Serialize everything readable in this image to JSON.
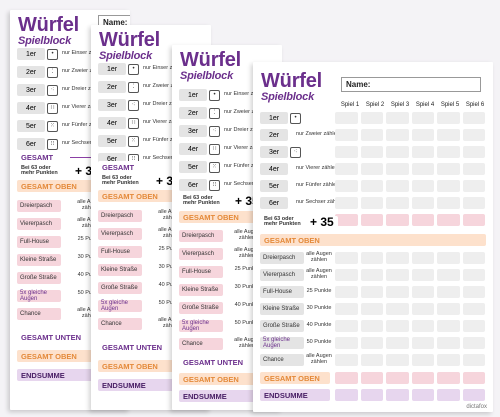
{
  "title": "Würfel",
  "subtitle": "Spielblock",
  "name_label": "Name:",
  "columns": [
    "Spiel 1",
    "Spiel 2",
    "Spiel 3",
    "Spiel 4",
    "Spiel 5",
    "Spiel 6"
  ],
  "upper": [
    {
      "label": "1er",
      "die": "•",
      "note": "nur Einser zählen"
    },
    {
      "label": "2er",
      "die": "⁚",
      "note": "nur Zweier zählen"
    },
    {
      "label": "3er",
      "die": "⁖",
      "note": "nur Dreier zählen"
    },
    {
      "label": "4er",
      "die": "∷",
      "note": "nur Vierer zählen"
    },
    {
      "label": "5er",
      "die": "⁙",
      "note": "nur Fünfer zählen"
    },
    {
      "label": "6er",
      "die": "⁝⁝",
      "note": "nur Sechser zählen"
    }
  ],
  "gesamt": "GESAMT",
  "bonus_note": "Bei 63 oder mehr Punkten",
  "bonus": "+ 35",
  "gesamt_oben": "GESAMT OBEN",
  "lower": [
    {
      "label": "Dreierpasch",
      "note": "alle Augen zählen"
    },
    {
      "label": "Viererpasch",
      "note": "alle Augen zählen"
    },
    {
      "label": "Full-House",
      "note": "25 Punkte"
    },
    {
      "label": "Kleine Straße",
      "note": "30 Punkte"
    },
    {
      "label": "Große Straße",
      "note": "40 Punkte"
    },
    {
      "label": "5x gleiche Augen",
      "note": "50 Punkte"
    },
    {
      "label": "Chance",
      "note": "alle Augen zählen"
    }
  ],
  "gesamt_unten": "GESAMT UNTEN",
  "endsumme": "ENDSUMME",
  "brand": "dictafox",
  "colors": {
    "purple": "#6b2f8c",
    "pink": "#f6d5dc",
    "orange": "#fde1cc",
    "lilac": "#e7d6ee"
  }
}
